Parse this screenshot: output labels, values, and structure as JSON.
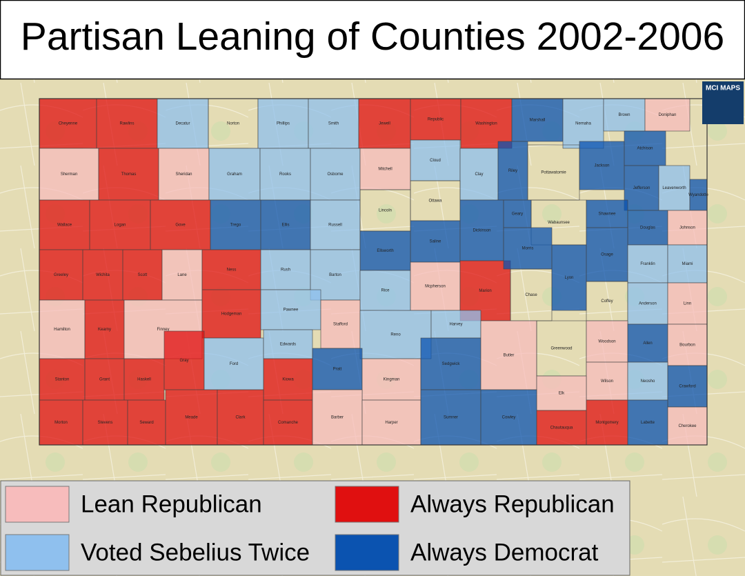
{
  "title": "Partisan Leaning of Counties 2002-2006",
  "logo": "MCI MAPS",
  "legend": [
    {
      "label": "Lean Republican",
      "color": "#f7bcbc"
    },
    {
      "label": "Always Republican",
      "color": "#e01010"
    },
    {
      "label": "Voted Sebelius Twice",
      "color": "#8fc0ee"
    },
    {
      "label": "Always Democrat",
      "color": "#0b53b0"
    }
  ],
  "counties": [
    {
      "name": "Cheyenne",
      "category": "Always Republican"
    },
    {
      "name": "Rawlins",
      "category": "Always Republican"
    },
    {
      "name": "Decatur",
      "category": "Voted Sebelius Twice"
    },
    {
      "name": "Norton",
      "category": null
    },
    {
      "name": "Phillips",
      "category": "Voted Sebelius Twice"
    },
    {
      "name": "Smith",
      "category": "Voted Sebelius Twice"
    },
    {
      "name": "Jewell",
      "category": "Always Republican"
    },
    {
      "name": "Republic",
      "category": "Always Republican"
    },
    {
      "name": "Washington",
      "category": "Always Republican"
    },
    {
      "name": "Marshall",
      "category": "Always Democrat"
    },
    {
      "name": "Nemaha",
      "category": "Voted Sebelius Twice"
    },
    {
      "name": "Brown",
      "category": "Voted Sebelius Twice"
    },
    {
      "name": "Doniphan",
      "category": "Lean Republican"
    },
    {
      "name": "Sherman",
      "category": "Lean Republican"
    },
    {
      "name": "Thomas",
      "category": "Always Republican"
    },
    {
      "name": "Sheridan",
      "category": "Lean Republican"
    },
    {
      "name": "Graham",
      "category": "Voted Sebelius Twice"
    },
    {
      "name": "Rooks",
      "category": "Voted Sebelius Twice"
    },
    {
      "name": "Osborne",
      "category": "Voted Sebelius Twice"
    },
    {
      "name": "Mitchell",
      "category": "Lean Republican"
    },
    {
      "name": "Cloud",
      "category": "Voted Sebelius Twice"
    },
    {
      "name": "Clay",
      "category": "Voted Sebelius Twice"
    },
    {
      "name": "Riley",
      "category": "Always Democrat"
    },
    {
      "name": "Pottawatomie",
      "category": null
    },
    {
      "name": "Jackson",
      "category": "Always Democrat"
    },
    {
      "name": "Atchison",
      "category": "Always Democrat"
    },
    {
      "name": "Jefferson",
      "category": "Always Democrat"
    },
    {
      "name": "Leavenworth",
      "category": "Voted Sebelius Twice"
    },
    {
      "name": "Wyandotte",
      "category": "Always Democrat"
    },
    {
      "name": "Wallace",
      "category": "Always Republican"
    },
    {
      "name": "Logan",
      "category": "Always Republican"
    },
    {
      "name": "Gove",
      "category": "Always Republican"
    },
    {
      "name": "Trego",
      "category": "Always Democrat"
    },
    {
      "name": "Ellis",
      "category": "Always Democrat"
    },
    {
      "name": "Russell",
      "category": "Voted Sebelius Twice"
    },
    {
      "name": "Lincoln",
      "category": null
    },
    {
      "name": "Ottawa",
      "category": null
    },
    {
      "name": "Saline",
      "category": "Always Democrat"
    },
    {
      "name": "Ellsworth",
      "category": "Always Democrat"
    },
    {
      "name": "Dickinson",
      "category": "Always Democrat"
    },
    {
      "name": "Geary",
      "category": "Always Democrat"
    },
    {
      "name": "Wabaunsee",
      "category": null
    },
    {
      "name": "Shawnee",
      "category": "Always Democrat"
    },
    {
      "name": "Douglas",
      "category": "Always Democrat"
    },
    {
      "name": "Johnson",
      "category": "Lean Republican"
    },
    {
      "name": "Greeley",
      "category": "Always Republican"
    },
    {
      "name": "Wichita",
      "category": "Always Republican"
    },
    {
      "name": "Scott",
      "category": "Always Republican"
    },
    {
      "name": "Lane",
      "category": "Lean Republican"
    },
    {
      "name": "Ness",
      "category": "Always Republican"
    },
    {
      "name": "Rush",
      "category": "Voted Sebelius Twice"
    },
    {
      "name": "Barton",
      "category": "Voted Sebelius Twice"
    },
    {
      "name": "Rice",
      "category": "Voted Sebelius Twice"
    },
    {
      "name": "Mcpherson",
      "category": "Lean Republican"
    },
    {
      "name": "Marion",
      "category": "Always Republican"
    },
    {
      "name": "Morris",
      "category": "Always Democrat"
    },
    {
      "name": "Chase",
      "category": null
    },
    {
      "name": "Lyon",
      "category": "Always Democrat"
    },
    {
      "name": "Osage",
      "category": "Always Democrat"
    },
    {
      "name": "Franklin",
      "category": "Voted Sebelius Twice"
    },
    {
      "name": "Miami",
      "category": "Voted Sebelius Twice"
    },
    {
      "name": "Hamilton",
      "category": "Lean Republican"
    },
    {
      "name": "Kearny",
      "category": "Always Republican"
    },
    {
      "name": "Finney",
      "category": "Lean Republican"
    },
    {
      "name": "Hodgeman",
      "category": "Always Republican"
    },
    {
      "name": "Pawnee",
      "category": "Voted Sebelius Twice"
    },
    {
      "name": "Stafford",
      "category": "Lean Republican"
    },
    {
      "name": "Reno",
      "category": "Voted Sebelius Twice"
    },
    {
      "name": "Harvey",
      "category": "Voted Sebelius Twice"
    },
    {
      "name": "Coffey",
      "category": null
    },
    {
      "name": "Anderson",
      "category": "Voted Sebelius Twice"
    },
    {
      "name": "Linn",
      "category": "Lean Republican"
    },
    {
      "name": "Stanton",
      "category": "Always Republican"
    },
    {
      "name": "Grant",
      "category": "Always Republican"
    },
    {
      "name": "Haskell",
      "category": "Always Republican"
    },
    {
      "name": "Gray",
      "category": "Always Republican"
    },
    {
      "name": "Ford",
      "category": "Voted Sebelius Twice"
    },
    {
      "name": "Edwards",
      "category": "Voted Sebelius Twice"
    },
    {
      "name": "Kiowa",
      "category": "Always Republican"
    },
    {
      "name": "Pratt",
      "category": "Always Democrat"
    },
    {
      "name": "Kingman",
      "category": "Lean Republican"
    },
    {
      "name": "Sedgwick",
      "category": "Always Democrat"
    },
    {
      "name": "Butler",
      "category": "Lean Republican"
    },
    {
      "name": "Greenwood",
      "category": null
    },
    {
      "name": "Woodson",
      "category": "Lean Republican"
    },
    {
      "name": "Allen",
      "category": "Always Democrat"
    },
    {
      "name": "Bourbon",
      "category": "Lean Republican"
    },
    {
      "name": "Wilson",
      "category": "Lean Republican"
    },
    {
      "name": "Neosho",
      "category": "Voted Sebelius Twice"
    },
    {
      "name": "Crawford",
      "category": "Always Democrat"
    },
    {
      "name": "Elk",
      "category": "Lean Republican"
    },
    {
      "name": "Morton",
      "category": "Always Republican"
    },
    {
      "name": "Stevens",
      "category": "Always Republican"
    },
    {
      "name": "Seward",
      "category": "Always Republican"
    },
    {
      "name": "Meade",
      "category": "Always Republican"
    },
    {
      "name": "Clark",
      "category": "Always Republican"
    },
    {
      "name": "Comanche",
      "category": "Always Republican"
    },
    {
      "name": "Barber",
      "category": "Lean Republican"
    },
    {
      "name": "Harper",
      "category": "Lean Republican"
    },
    {
      "name": "Sumner",
      "category": "Always Democrat"
    },
    {
      "name": "Cowley",
      "category": "Always Democrat"
    },
    {
      "name": "Chautauqua",
      "category": "Always Republican"
    },
    {
      "name": "Montgomery",
      "category": "Always Republican"
    },
    {
      "name": "Labette",
      "category": "Always Democrat"
    },
    {
      "name": "Cherokee",
      "category": "Lean Republican"
    }
  ]
}
